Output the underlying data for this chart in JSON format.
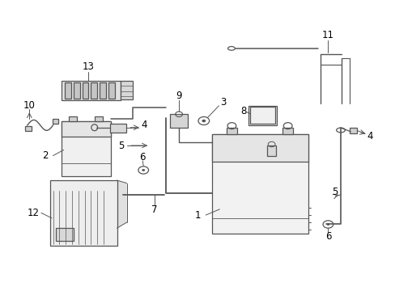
{
  "bg_color": "#ffffff",
  "line_color": "#555555",
  "label_color": "#000000",
  "label_fontsize": 8.5
}
